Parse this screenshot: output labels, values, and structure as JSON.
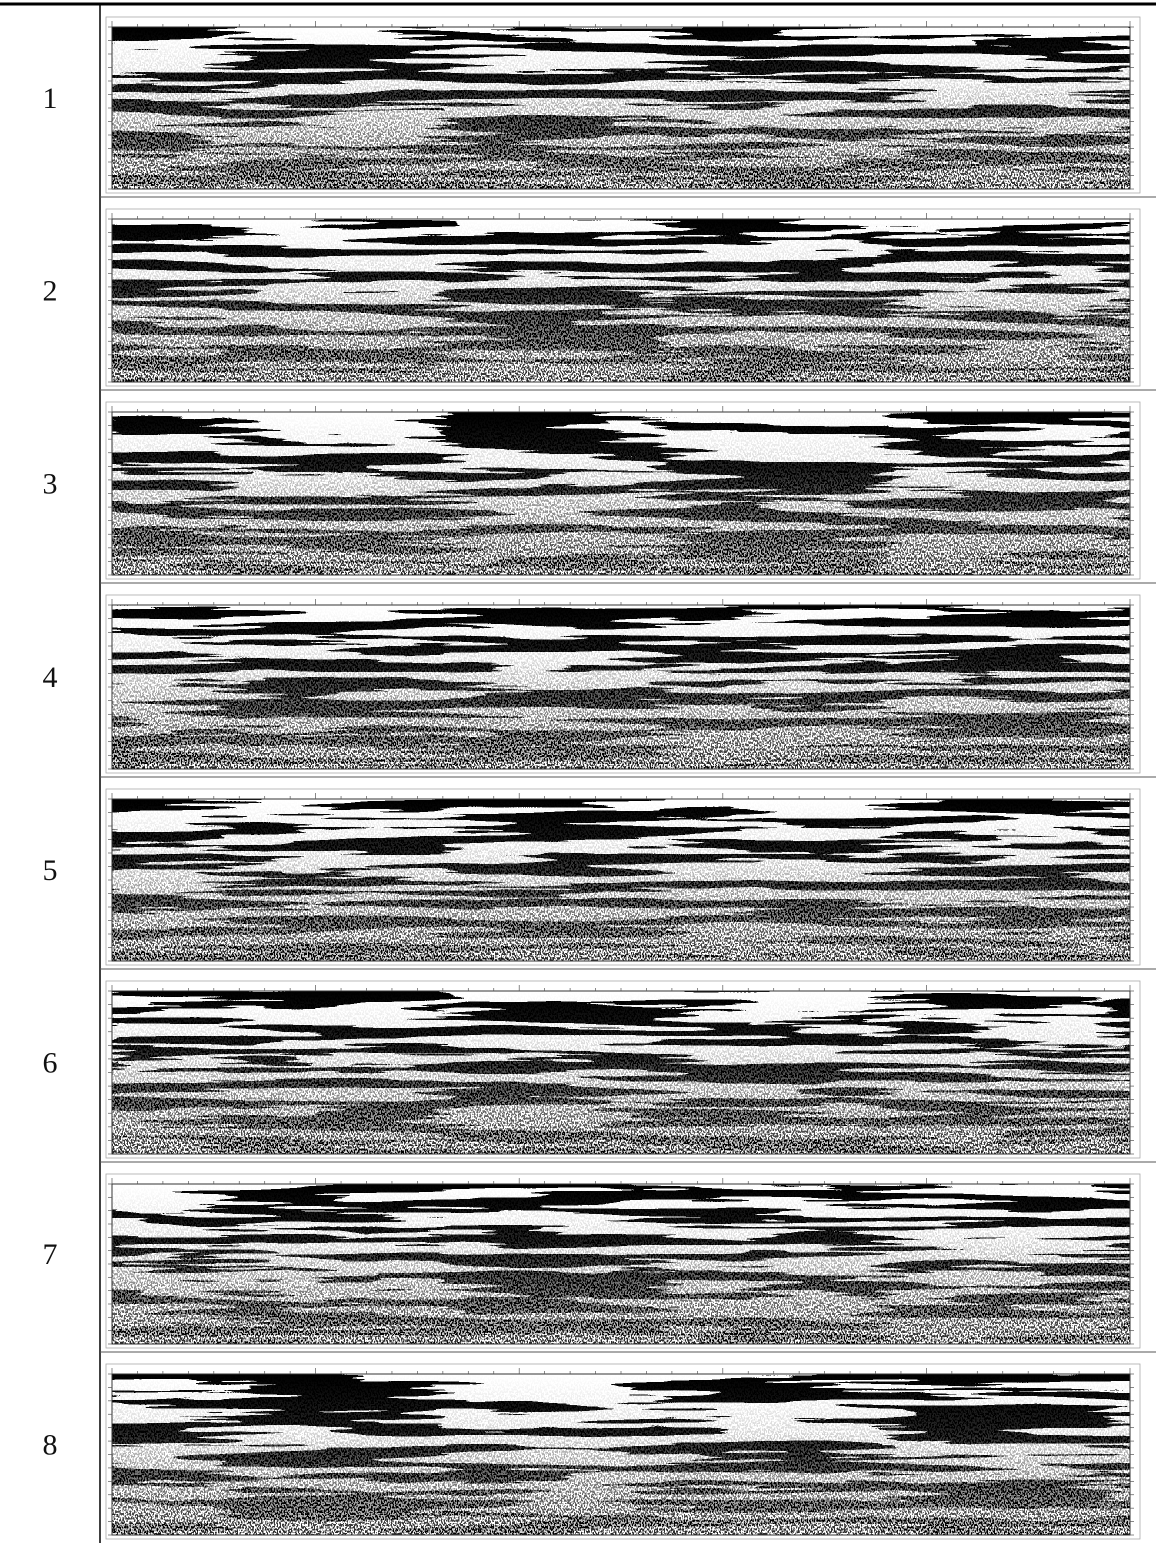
{
  "rows": [
    {
      "label": "1"
    },
    {
      "label": "2"
    },
    {
      "label": "3"
    },
    {
      "label": "4"
    },
    {
      "label": "5"
    },
    {
      "label": "6"
    },
    {
      "label": "7"
    },
    {
      "label": "8"
    }
  ]
}
